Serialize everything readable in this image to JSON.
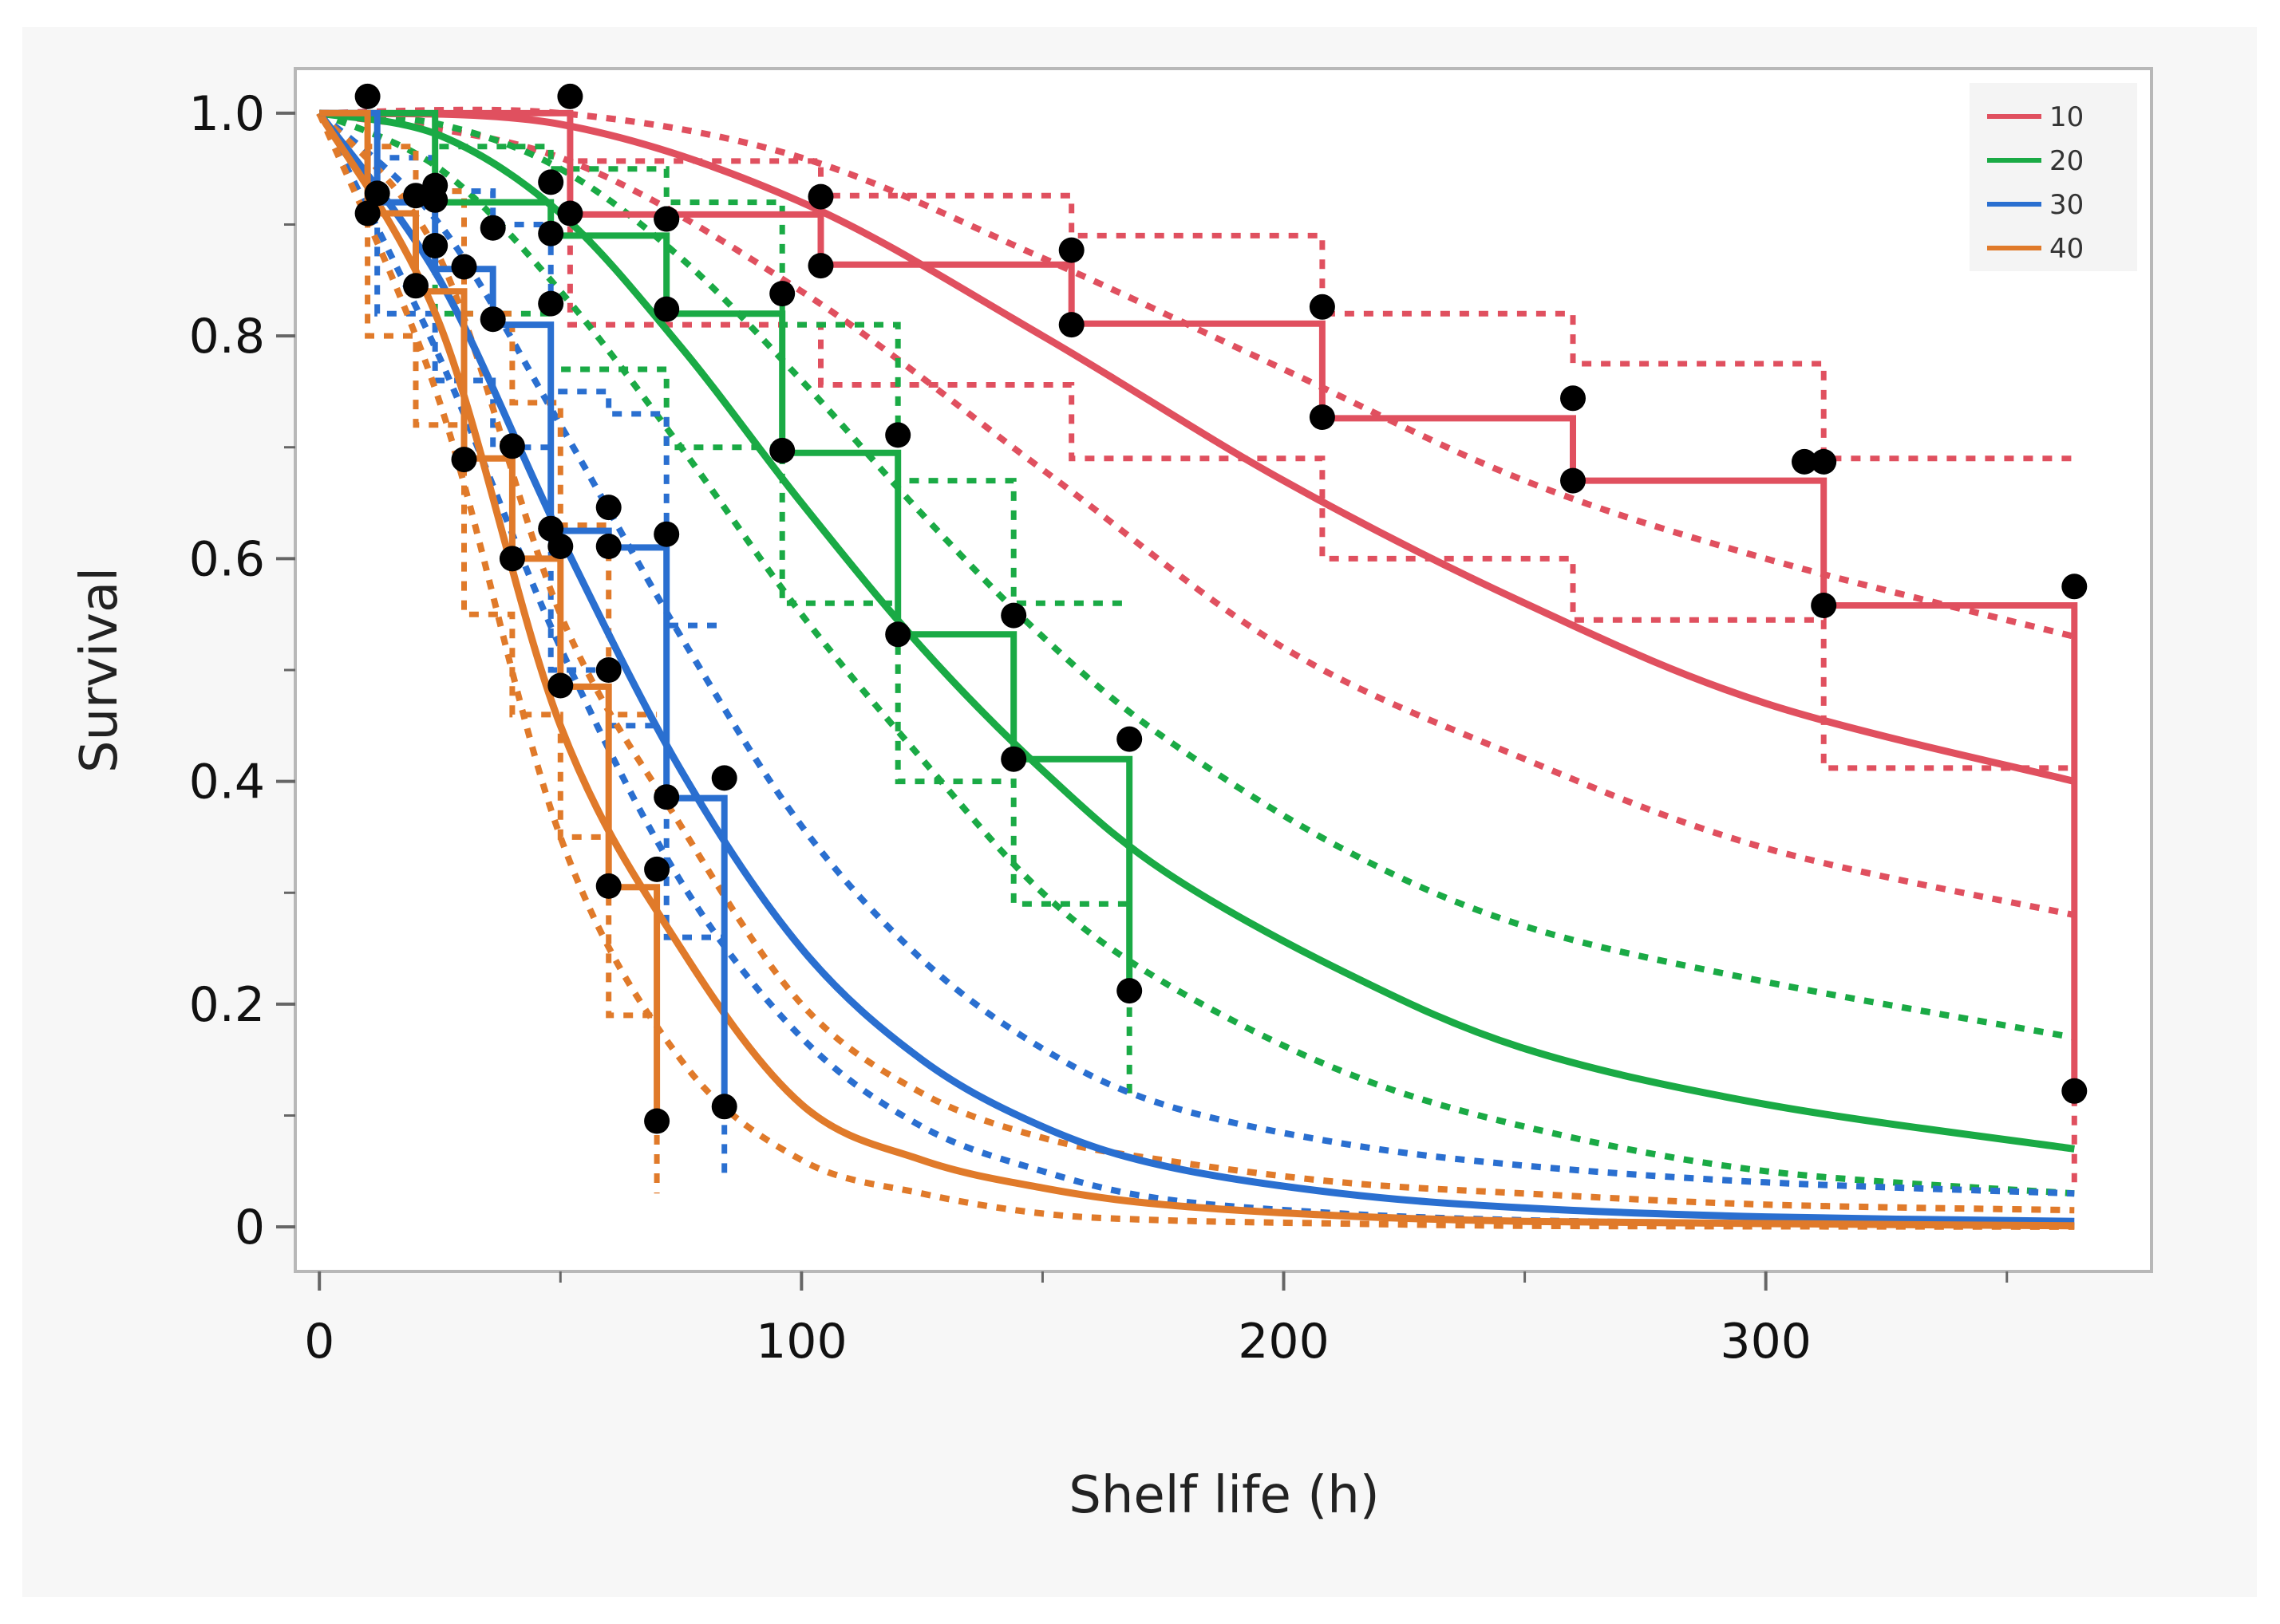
{
  "chart_data": {
    "type": "line",
    "title": "",
    "xlabel": "Shelf life (h)",
    "ylabel": "Survival",
    "xlim": [
      -5,
      380
    ],
    "ylim": [
      -0.04,
      1.04
    ],
    "grid": false,
    "legend_position": "top-right",
    "x_ticks": [
      0,
      100,
      200,
      300
    ],
    "x_tick_labels": [
      "0",
      "100",
      "200",
      "300"
    ],
    "x_minor_ticks": [
      50,
      150,
      250,
      350
    ],
    "y_ticks": [
      0,
      0.2,
      0.4,
      0.6,
      0.8,
      1.0
    ],
    "y_tick_labels": [
      "0",
      "0.2",
      "0.4",
      "0.6",
      "0.8",
      "1.0"
    ],
    "y_minor_ticks": [
      0.1,
      0.3,
      0.5,
      0.7,
      0.9
    ],
    "series": [
      {
        "name": "10",
        "color": "#e0505f",
        "fit_x": [
          0,
          50,
          100,
          150,
          200,
          250,
          300,
          364
        ],
        "fit": [
          1.0,
          0.99,
          0.92,
          0.8,
          0.67,
          0.56,
          0.47,
          0.4
        ],
        "fit_lower": [
          1.0,
          0.96,
          0.84,
          0.68,
          0.52,
          0.42,
          0.34,
          0.28
        ],
        "fit_upper": [
          1.0,
          1.0,
          0.96,
          0.87,
          0.77,
          0.67,
          0.6,
          0.53
        ],
        "km_x": [
          0,
          10,
          52,
          104,
          156,
          208,
          260,
          312,
          364
        ],
        "km": [
          1.0,
          1.0,
          0.909,
          0.864,
          0.811,
          0.726,
          0.67,
          0.558,
          0.12
        ],
        "km_lower": [
          1.0,
          1.0,
          0.81,
          0.756,
          0.69,
          0.6,
          0.545,
          0.412,
          0.04
        ],
        "km_upper": [
          1.0,
          1.0,
          0.957,
          0.926,
          0.89,
          0.82,
          0.775,
          0.69,
          0.69
        ],
        "points": [
          [
            10,
            1.015
          ],
          [
            52,
            1.015
          ],
          [
            52,
            0.91
          ],
          [
            72,
            0.905
          ],
          [
            104,
            0.925
          ],
          [
            104,
            0.863
          ],
          [
            156,
            0.877
          ],
          [
            156,
            0.81
          ],
          [
            208,
            0.826
          ],
          [
            208,
            0.727
          ],
          [
            260,
            0.744
          ],
          [
            260,
            0.67
          ],
          [
            308,
            0.687
          ],
          [
            312,
            0.687
          ],
          [
            312,
            0.558
          ],
          [
            364,
            0.575
          ],
          [
            364,
            0.122
          ]
        ]
      },
      {
        "name": "20",
        "color": "#1aaa45",
        "fit_x": [
          0,
          25,
          50,
          75,
          100,
          125,
          150,
          175,
          212,
          250,
          300,
          364
        ],
        "fit": [
          1.0,
          0.98,
          0.91,
          0.79,
          0.65,
          0.52,
          0.41,
          0.32,
          0.23,
          0.16,
          0.11,
          0.07
        ],
        "fit_lower": [
          1.0,
          0.95,
          0.84,
          0.7,
          0.55,
          0.42,
          0.3,
          0.22,
          0.14,
          0.09,
          0.05,
          0.03
        ],
        "fit_upper": [
          1.0,
          0.99,
          0.95,
          0.87,
          0.76,
          0.64,
          0.53,
          0.44,
          0.34,
          0.27,
          0.22,
          0.17
        ],
        "km_x": [
          0,
          24,
          48,
          72,
          96,
          120,
          144,
          168
        ],
        "km": [
          1.0,
          0.92,
          0.89,
          0.82,
          0.695,
          0.532,
          0.42,
          0.21
        ],
        "km_lower": [
          1.0,
          0.82,
          0.77,
          0.7,
          0.56,
          0.4,
          0.29,
          0.12
        ],
        "km_upper": [
          1.0,
          0.97,
          0.95,
          0.92,
          0.81,
          0.67,
          0.56,
          0.56
        ],
        "points": [
          [
            24,
            0.935
          ],
          [
            48,
            0.938
          ],
          [
            48,
            0.892
          ],
          [
            72,
            0.905
          ],
          [
            72,
            0.824
          ],
          [
            96,
            0.838
          ],
          [
            96,
            0.697
          ],
          [
            120,
            0.711
          ],
          [
            120,
            0.532
          ],
          [
            144,
            0.549
          ],
          [
            144,
            0.42
          ],
          [
            168,
            0.438
          ],
          [
            168,
            0.212
          ]
        ]
      },
      {
        "name": "30",
        "color": "#2a6fd0",
        "fit_x": [
          0,
          25,
          50,
          75,
          100,
          125,
          150,
          175,
          212,
          250,
          300,
          364
        ],
        "fit": [
          1.0,
          0.85,
          0.62,
          0.41,
          0.25,
          0.15,
          0.09,
          0.055,
          0.03,
          0.017,
          0.009,
          0.005
        ],
        "fit_lower": [
          1.0,
          0.78,
          0.52,
          0.31,
          0.17,
          0.09,
          0.05,
          0.025,
          0.012,
          0.006,
          0.003,
          0.001
        ],
        "fit_upper": [
          1.0,
          0.9,
          0.72,
          0.53,
          0.36,
          0.24,
          0.16,
          0.11,
          0.075,
          0.055,
          0.04,
          0.03
        ],
        "km_x": [
          0,
          12,
          24,
          36,
          48,
          60,
          72,
          84
        ],
        "km": [
          1.0,
          0.92,
          0.86,
          0.81,
          0.625,
          0.61,
          0.385,
          0.105
        ],
        "km_lower": [
          1.0,
          0.82,
          0.76,
          0.7,
          0.5,
          0.45,
          0.26,
          0.04
        ],
        "km_upper": [
          1.0,
          0.96,
          0.93,
          0.9,
          0.75,
          0.73,
          0.54,
          0.54
        ],
        "points": [
          [
            12,
            0.928
          ],
          [
            24,
            0.922
          ],
          [
            24,
            0.881
          ],
          [
            36,
            0.897
          ],
          [
            36,
            0.815
          ],
          [
            48,
            0.829
          ],
          [
            48,
            0.627
          ],
          [
            60,
            0.646
          ],
          [
            60,
            0.611
          ],
          [
            72,
            0.622
          ],
          [
            72,
            0.386
          ],
          [
            84,
            0.403
          ],
          [
            84,
            0.108
          ]
        ]
      },
      {
        "name": "40",
        "color": "#e07a2a",
        "fit_x": [
          0,
          25,
          50,
          75,
          100,
          125,
          150,
          175,
          212,
          250,
          300,
          364
        ],
        "fit": [
          1.0,
          0.81,
          0.45,
          0.25,
          0.11,
          0.06,
          0.035,
          0.02,
          0.01,
          0.005,
          0.003,
          0.001
        ],
        "fit_lower": [
          1.0,
          0.74,
          0.35,
          0.15,
          0.06,
          0.03,
          0.012,
          0.006,
          0.003,
          0.001,
          0.0005,
          0.0002
        ],
        "fit_upper": [
          1.0,
          0.87,
          0.55,
          0.36,
          0.2,
          0.12,
          0.08,
          0.06,
          0.04,
          0.03,
          0.02,
          0.015
        ],
        "km_x": [
          0,
          10,
          20,
          30,
          40,
          50,
          60,
          70
        ],
        "km": [
          1.0,
          0.91,
          0.84,
          0.69,
          0.6,
          0.485,
          0.305,
          0.095
        ],
        "km_lower": [
          1.0,
          0.8,
          0.72,
          0.55,
          0.46,
          0.35,
          0.19,
          0.03
        ],
        "km_upper": [
          1.0,
          0.97,
          0.93,
          0.82,
          0.74,
          0.63,
          0.46,
          0.46
        ],
        "points": [
          [
            10,
            0.91
          ],
          [
            20,
            0.926
          ],
          [
            20,
            0.845
          ],
          [
            30,
            0.862
          ],
          [
            30,
            0.689
          ],
          [
            40,
            0.701
          ],
          [
            40,
            0.6
          ],
          [
            50,
            0.611
          ],
          [
            50,
            0.486
          ],
          [
            60,
            0.5
          ],
          [
            60,
            0.306
          ],
          [
            70,
            0.321
          ],
          [
            70,
            0.095
          ]
        ]
      }
    ]
  }
}
